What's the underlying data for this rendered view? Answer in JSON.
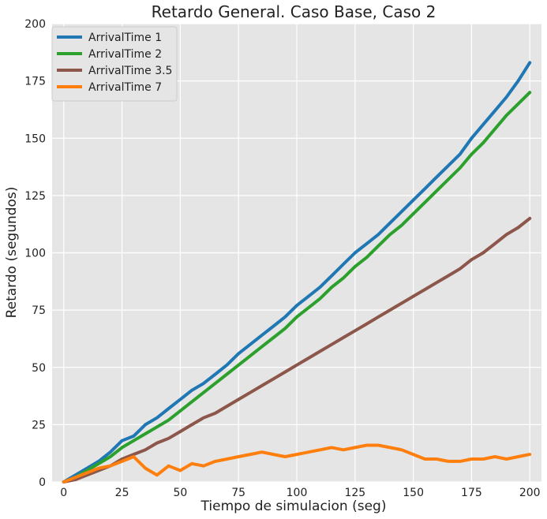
{
  "chart_data": {
    "type": "line",
    "title": "Retardo General. Caso Base, Caso 2",
    "xlabel": "Tiempo de simulacion (seg)",
    "ylabel": "Retardo (segundos)",
    "xlim": [
      -5,
      205
    ],
    "ylim": [
      0,
      200
    ],
    "xticks": [
      0,
      25,
      50,
      75,
      100,
      125,
      150,
      175,
      200
    ],
    "yticks": [
      0,
      25,
      50,
      75,
      100,
      125,
      150,
      175,
      200
    ],
    "grid": true,
    "legend_position": "top-left",
    "background": "#e5e5e5",
    "series": [
      {
        "name": "ArrivalTime 1",
        "color": "#1f77b4",
        "x": [
          0,
          5,
          10,
          15,
          20,
          25,
          30,
          35,
          40,
          45,
          50,
          55,
          60,
          65,
          70,
          75,
          80,
          85,
          90,
          95,
          100,
          105,
          110,
          115,
          120,
          125,
          130,
          135,
          140,
          145,
          150,
          155,
          160,
          165,
          170,
          175,
          180,
          185,
          190,
          195,
          200
        ],
        "y": [
          0,
          3,
          6,
          9,
          13,
          18,
          20,
          25,
          28,
          32,
          36,
          40,
          43,
          47,
          51,
          56,
          60,
          64,
          68,
          72,
          77,
          81,
          85,
          90,
          95,
          100,
          104,
          108,
          113,
          118,
          123,
          128,
          133,
          138,
          143,
          150,
          156,
          162,
          168,
          175,
          183
        ]
      },
      {
        "name": "ArrivalTime 2",
        "color": "#2ca02c",
        "x": [
          0,
          5,
          10,
          15,
          20,
          25,
          30,
          35,
          40,
          45,
          50,
          55,
          60,
          65,
          70,
          75,
          80,
          85,
          90,
          95,
          100,
          105,
          110,
          115,
          120,
          125,
          130,
          135,
          140,
          145,
          150,
          155,
          160,
          165,
          170,
          175,
          180,
          185,
          190,
          195,
          200
        ],
        "y": [
          0,
          2,
          5,
          8,
          11,
          15,
          18,
          21,
          24,
          27,
          31,
          35,
          39,
          43,
          47,
          51,
          55,
          59,
          63,
          67,
          72,
          76,
          80,
          85,
          89,
          94,
          98,
          103,
          108,
          112,
          117,
          122,
          127,
          132,
          137,
          143,
          148,
          154,
          160,
          165,
          170
        ]
      },
      {
        "name": "ArrivalTime 3.5",
        "color": "#8c564b",
        "x": [
          0,
          5,
          10,
          15,
          20,
          25,
          30,
          35,
          40,
          45,
          50,
          55,
          60,
          65,
          70,
          75,
          80,
          85,
          90,
          95,
          100,
          105,
          110,
          115,
          120,
          125,
          130,
          135,
          140,
          145,
          150,
          155,
          160,
          165,
          170,
          175,
          180,
          185,
          190,
          195,
          200
        ],
        "y": [
          0,
          1,
          3,
          5,
          7,
          10,
          12,
          14,
          17,
          19,
          22,
          25,
          28,
          30,
          33,
          36,
          39,
          42,
          45,
          48,
          51,
          54,
          57,
          60,
          63,
          66,
          69,
          72,
          75,
          78,
          81,
          84,
          87,
          90,
          93,
          97,
          100,
          104,
          108,
          111,
          115
        ]
      },
      {
        "name": "ArrivalTime 7",
        "color": "#ff7f0e",
        "x": [
          0,
          5,
          10,
          15,
          20,
          25,
          30,
          35,
          40,
          45,
          50,
          55,
          60,
          65,
          70,
          75,
          80,
          85,
          90,
          95,
          100,
          105,
          110,
          115,
          120,
          125,
          130,
          135,
          140,
          145,
          150,
          155,
          160,
          165,
          170,
          175,
          180,
          185,
          190,
          195,
          200
        ],
        "y": [
          0,
          2,
          4,
          6,
          7,
          9,
          11,
          6,
          3,
          7,
          5,
          8,
          7,
          9,
          10,
          11,
          12,
          13,
          12,
          11,
          12,
          13,
          14,
          15,
          14,
          15,
          16,
          16,
          15,
          14,
          12,
          10,
          10,
          9,
          9,
          10,
          10,
          11,
          10,
          11,
          12
        ]
      }
    ]
  }
}
